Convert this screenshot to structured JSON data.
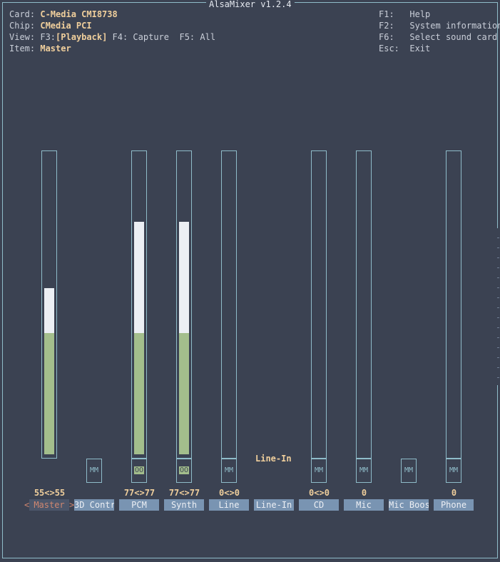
{
  "app": {
    "title": "AlsaMixer v1.2.4"
  },
  "info": {
    "card_label": "Card:",
    "card": "C-Media CMI8738",
    "chip_label": "Chip:",
    "chip": "CMedia PCI",
    "view_label": "View:",
    "view_f3": "F3:",
    "view_playback": "[Playback]",
    "view_f4": "F4: Capture",
    "view_f5": "F5: All",
    "item_label": "Item:",
    "item": "Master"
  },
  "keys": [
    {
      "key": "F1:",
      "action": "Help"
    },
    {
      "key": "F2:",
      "action": "System information"
    },
    {
      "key": "F6:",
      "action": "Select sound card"
    },
    {
      "key": "Esc:",
      "action": "Exit"
    }
  ],
  "channels": [
    {
      "name": "Master",
      "value": "55<>55",
      "selected": true,
      "has_volume": true,
      "level": 0.55,
      "switch": null
    },
    {
      "name": "3D Contr",
      "value": "",
      "selected": false,
      "has_volume": false,
      "switch": "MM"
    },
    {
      "name": "PCM",
      "value": "77<>77",
      "selected": false,
      "has_volume": true,
      "level": 0.77,
      "switch": "OO"
    },
    {
      "name": "Synth",
      "value": "77<>77",
      "selected": false,
      "has_volume": true,
      "level": 0.77,
      "switch": "OO"
    },
    {
      "name": "Line",
      "value": "0<>0",
      "selected": false,
      "has_volume": true,
      "level": 0,
      "switch": "MM"
    },
    {
      "name": "Line-In",
      "value": "",
      "selected": false,
      "has_volume": false,
      "switch": null,
      "capture_label": "Line-In"
    },
    {
      "name": "CD",
      "value": "0<>0",
      "selected": false,
      "has_volume": true,
      "level": 0,
      "switch": "MM"
    },
    {
      "name": "Mic",
      "value": "0",
      "selected": false,
      "has_volume": true,
      "level": 0,
      "switch": "MM"
    },
    {
      "name": "Mic Boos",
      "value": "",
      "selected": false,
      "has_volume": false,
      "switch": "MM"
    },
    {
      "name": "Phone",
      "value": "0",
      "selected": false,
      "has_volume": true,
      "level": 0,
      "switch": "MM"
    }
  ],
  "selection_arrows": {
    "left": "<",
    "right": ">"
  }
}
